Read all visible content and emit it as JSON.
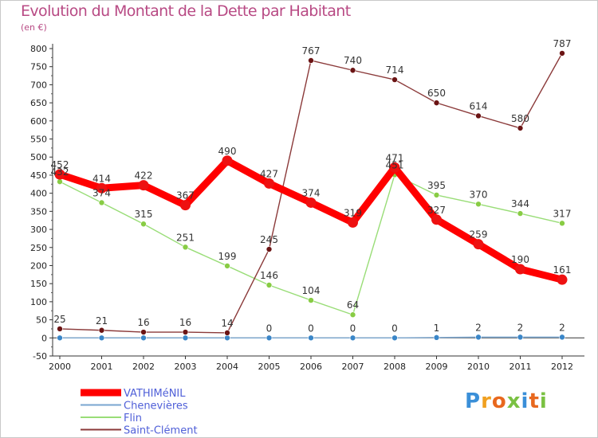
{
  "header": {
    "title": "Evolution du Montant de la Dette par Habitant",
    "unit": "(en €)"
  },
  "logo": {
    "letters": [
      "P",
      "r",
      "o",
      "x",
      "i",
      "t",
      "i"
    ],
    "colors": [
      "#3a8fd8",
      "#f0a020",
      "#e8681e",
      "#7ac142",
      "#3a8fd8",
      "#e8681e",
      "#7ac142"
    ]
  },
  "chart_data": {
    "type": "line",
    "title": "Evolution du Montant de la Dette par Habitant",
    "ylabel": "(en €)",
    "xlabel": "",
    "categories": [
      "2000",
      "2001",
      "2002",
      "2003",
      "2004",
      "2005",
      "2006",
      "2007",
      "2008",
      "2009",
      "2010",
      "2011",
      "2012"
    ],
    "ylim": [
      -50,
      800
    ],
    "yticks": [
      -50,
      0,
      50,
      100,
      150,
      200,
      250,
      300,
      350,
      400,
      450,
      500,
      550,
      600,
      650,
      700,
      750,
      800
    ],
    "grid": false,
    "legend": "bottom-left",
    "series": [
      {
        "name": "VATHIMéNIL",
        "color": "#ff0000",
        "point_color": "#ee1111",
        "emphasis": "thick",
        "values": [
          452,
          414,
          422,
          367,
          490,
          427,
          374,
          319,
          471,
          327,
          259,
          190,
          161
        ],
        "labels": [
          "452",
          "414",
          "422",
          "367",
          "490",
          "427",
          "374",
          "319",
          "471",
          "327",
          "259",
          "190",
          "161"
        ]
      },
      {
        "name": "Chenevières",
        "color": "#7aa6d0",
        "point_color": "#3a86c8",
        "emphasis": "thin",
        "values": [
          0,
          0,
          0,
          0,
          0,
          0,
          0,
          0,
          0,
          1,
          2,
          2,
          2
        ],
        "labels": [
          "",
          "",
          "",
          "",
          "",
          "0",
          "0",
          "0",
          "0",
          "1",
          "2",
          "2",
          "2"
        ]
      },
      {
        "name": "Flin",
        "color": "#99dd77",
        "point_color": "#88cc44",
        "emphasis": "thin",
        "values": [
          432,
          374,
          315,
          251,
          199,
          146,
          104,
          64,
          451,
          395,
          370,
          344,
          317
        ],
        "labels": [
          "432",
          "374",
          "315",
          "251",
          "199",
          "146",
          "104",
          "64",
          "451",
          "395",
          "370",
          "344",
          "317"
        ]
      },
      {
        "name": "Saint-Clément",
        "color": "#8b3a3a",
        "point_color": "#6b1414",
        "emphasis": "thin",
        "values": [
          25,
          21,
          16,
          16,
          14,
          245,
          767,
          740,
          714,
          650,
          614,
          580,
          787
        ],
        "labels": [
          "25",
          "21",
          "16",
          "16",
          "14",
          "245",
          "767",
          "740",
          "714",
          "650",
          "614",
          "580",
          "787"
        ]
      }
    ]
  }
}
